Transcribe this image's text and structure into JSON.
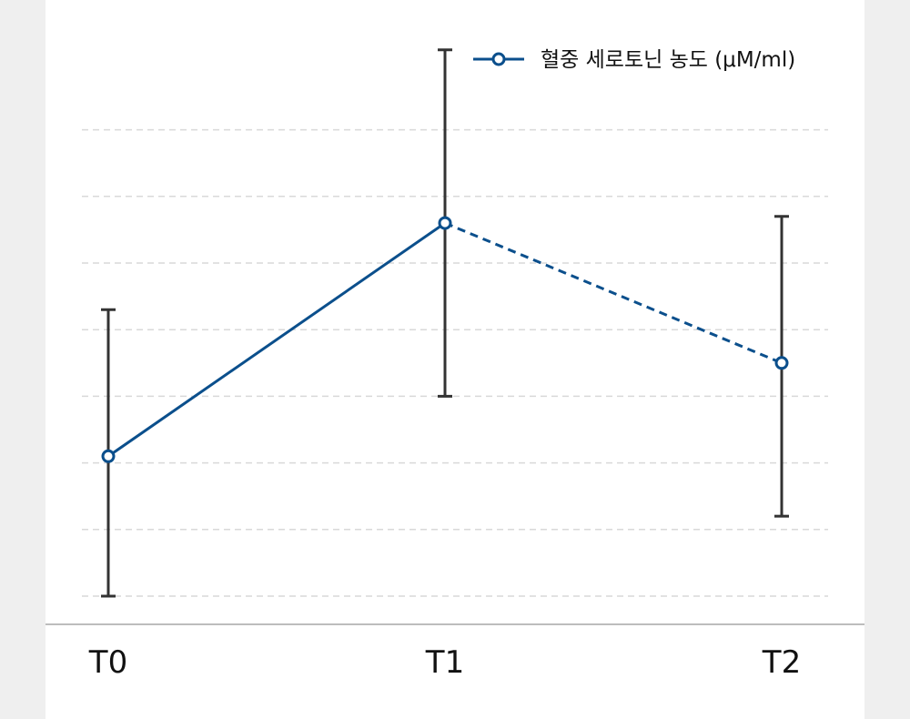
{
  "chart_data": {
    "type": "line",
    "categories": [
      "T0",
      "T1",
      "T2"
    ],
    "series": [
      {
        "name": "혈중 세로토닌 농도 (μM/ml)",
        "values": [
          2.1,
          5.6,
          3.5
        ],
        "error_low": [
          0.0,
          3.0,
          1.2
        ],
        "error_high": [
          4.3,
          8.2,
          5.7
        ],
        "segment_styles": [
          "solid",
          "dashed"
        ],
        "color": "#0b4f8c"
      }
    ],
    "ylim": [
      0,
      8.5
    ],
    "grid": true,
    "grid_style": "dashed",
    "y_tick_labels_shown": false,
    "legend_position": "top-right",
    "title": "",
    "xlabel": "",
    "ylabel": ""
  },
  "colors": {
    "background": "#efefef",
    "panel": "#ffffff",
    "series": "#0b4f8c",
    "error_bar": "#333333",
    "grid": "#d9d9d9",
    "axis": "#bdbdbd"
  }
}
